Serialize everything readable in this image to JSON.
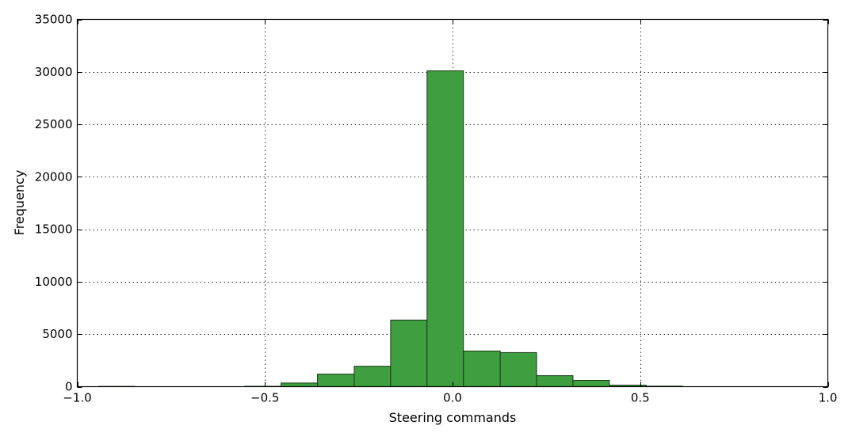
{
  "chart_data": {
    "type": "bar",
    "title": "",
    "xlabel": "Steering commands",
    "ylabel": "Frequency",
    "xlim": [
      -1.0,
      1.0
    ],
    "ylim": [
      0,
      35000
    ],
    "x_ticks": [
      -1.0,
      -0.5,
      0.0,
      0.5,
      1.0
    ],
    "x_tick_labels": [
      "−1.0",
      "−0.5",
      "0.0",
      "0.5",
      "1.0"
    ],
    "y_ticks": [
      0,
      5000,
      10000,
      15000,
      20000,
      25000,
      30000,
      35000
    ],
    "y_tick_labels": [
      "0",
      "5000",
      "10000",
      "15000",
      "20000",
      "25000",
      "30000",
      "35000"
    ],
    "grid": true,
    "bar_color": "#3f9e3f",
    "bar_edge_color": "#1a3a1a",
    "bins": [
      {
        "x0": -0.943,
        "x1": -0.846,
        "value": 30
      },
      {
        "x0": -0.846,
        "x1": -0.749,
        "value": 0
      },
      {
        "x0": -0.749,
        "x1": -0.651,
        "value": 0
      },
      {
        "x0": -0.651,
        "x1": -0.554,
        "value": 0
      },
      {
        "x0": -0.554,
        "x1": -0.457,
        "value": 40
      },
      {
        "x0": -0.457,
        "x1": -0.36,
        "value": 350
      },
      {
        "x0": -0.36,
        "x1": -0.262,
        "value": 1200
      },
      {
        "x0": -0.262,
        "x1": -0.165,
        "value": 1950
      },
      {
        "x0": -0.165,
        "x1": -0.068,
        "value": 6350
      },
      {
        "x0": -0.068,
        "x1": 0.029,
        "value": 30100
      },
      {
        "x0": 0.029,
        "x1": 0.127,
        "value": 3400
      },
      {
        "x0": 0.127,
        "x1": 0.224,
        "value": 3250
      },
      {
        "x0": 0.224,
        "x1": 0.321,
        "value": 1050
      },
      {
        "x0": 0.321,
        "x1": 0.418,
        "value": 600
      },
      {
        "x0": 0.418,
        "x1": 0.516,
        "value": 150
      },
      {
        "x0": 0.516,
        "x1": 0.613,
        "value": 50
      }
    ]
  }
}
